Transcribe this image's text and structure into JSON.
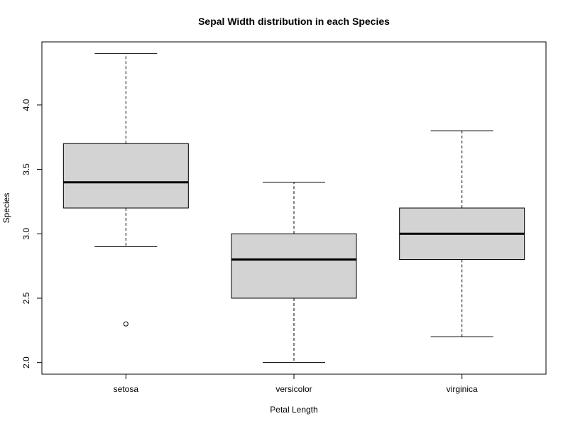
{
  "chart_data": {
    "type": "boxplot",
    "title": "Sepal Width distribution in each Species",
    "xlabel": "Petal Length",
    "ylabel": "Species",
    "ylim": [
      1.91,
      4.49
    ],
    "y_ticks": [
      2.0,
      2.5,
      3.0,
      3.5,
      4.0
    ],
    "y_tick_labels": [
      "2.0",
      "2.5",
      "3.0",
      "3.5",
      "4.0"
    ],
    "grid": false,
    "box_fill": "#d3d3d3",
    "categories": [
      "setosa",
      "versicolor",
      "virginica"
    ],
    "series": [
      {
        "category": "setosa",
        "whisker_low": 2.9,
        "q1": 3.2,
        "median": 3.4,
        "q3": 3.7,
        "whisker_high": 4.4,
        "outliers": [
          2.3
        ]
      },
      {
        "category": "versicolor",
        "whisker_low": 2.0,
        "q1": 2.5,
        "median": 2.8,
        "q3": 3.0,
        "whisker_high": 3.4,
        "outliers": []
      },
      {
        "category": "virginica",
        "whisker_low": 2.2,
        "q1": 2.8,
        "median": 3.0,
        "q3": 3.2,
        "whisker_high": 3.8,
        "outliers": []
      }
    ]
  }
}
